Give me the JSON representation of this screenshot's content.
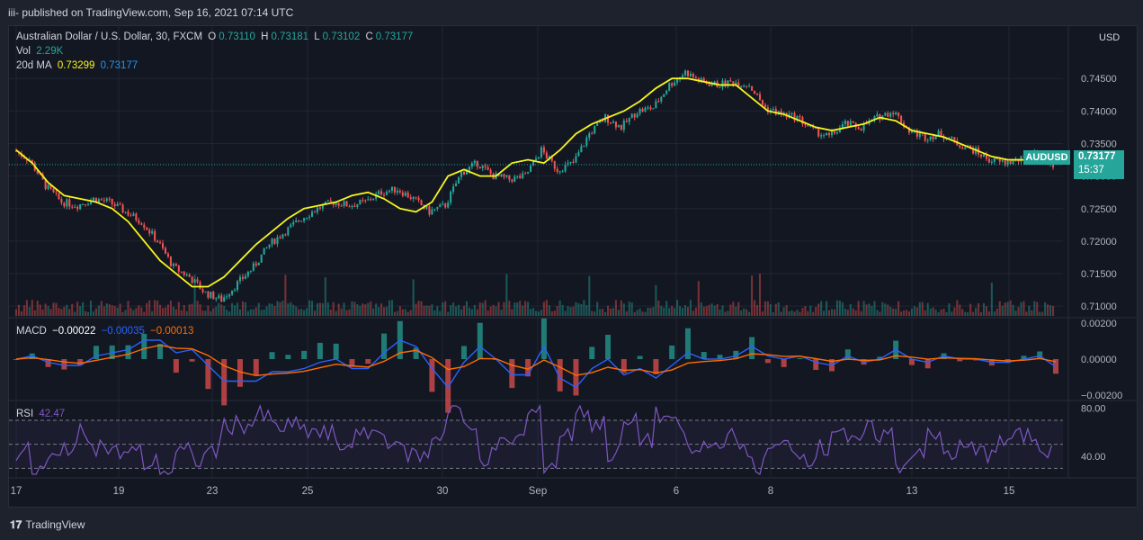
{
  "header": {
    "published": "iii- published on TradingView.com, Sep 16, 2021 07:14 UTC"
  },
  "legend": {
    "symbol": "Australian Dollar / U.S. Dollar, 30, FXCM",
    "o_label": "O",
    "o_value": "0.73110",
    "h_label": "H",
    "h_value": "0.73181",
    "l_label": "L",
    "l_value": "0.73102",
    "c_label": "C",
    "c_value": "0.73177",
    "vol_label": "Vol",
    "vol_value": "2.29K",
    "ma_label": "20d MA",
    "ma_value1": "0.73299",
    "ma_value2": "0.73177"
  },
  "macd_legend": {
    "label": "MACD",
    "v1": "−0.00022",
    "v2": "−0.00035",
    "v3": "−0.00013"
  },
  "rsi_legend": {
    "label": "RSI",
    "value": "42.47"
  },
  "price_tag": {
    "symbol": "AUDUSD",
    "last": "0.73177",
    "countdown": "15:37"
  },
  "footer": {
    "brand": "TradingView"
  },
  "colors": {
    "up": "#26a69a",
    "down": "#ef5350",
    "ma": "#f5f51d",
    "macd": "#2962ff",
    "signal": "#ff6d00",
    "rsi": "#7e57c2"
  },
  "chart_data": [
    {
      "type": "candlestick",
      "title": "Australian Dollar / U.S. Dollar, 30, FXCM",
      "currency": "USD",
      "x_ticks": [
        "17",
        "19",
        "23",
        "25",
        "30",
        "Sep",
        "6",
        "8",
        "13",
        "15"
      ],
      "y_ticks": [
        "0.74500",
        "0.74000",
        "0.73500",
        "0.73000",
        "0.72500",
        "0.72000",
        "0.71500",
        "0.71000"
      ],
      "ylim": [
        0.7085,
        0.7525
      ],
      "close_approx": [
        0.734,
        0.7325,
        0.7285,
        0.726,
        0.7255,
        0.7265,
        0.726,
        0.7245,
        0.723,
        0.72,
        0.716,
        0.7145,
        0.712,
        0.711,
        0.7135,
        0.716,
        0.7195,
        0.7215,
        0.7235,
        0.725,
        0.726,
        0.7255,
        0.726,
        0.7275,
        0.728,
        0.7265,
        0.7245,
        0.7255,
        0.7305,
        0.732,
        0.73,
        0.7295,
        0.73,
        0.734,
        0.731,
        0.732,
        0.7365,
        0.739,
        0.7375,
        0.74,
        0.7405,
        0.744,
        0.746,
        0.7445,
        0.744,
        0.7445,
        0.744,
        0.7405,
        0.7395,
        0.739,
        0.737,
        0.736,
        0.738,
        0.7375,
        0.739,
        0.74,
        0.737,
        0.736,
        0.7365,
        0.735,
        0.734,
        0.7325,
        0.732,
        0.7325,
        0.7335,
        0.7318
      ]
    },
    {
      "type": "line",
      "name": "20d MA",
      "color": "#f5f51d",
      "ma_approx": [
        0.734,
        0.732,
        0.729,
        0.727,
        0.7265,
        0.726,
        0.725,
        0.723,
        0.72,
        0.717,
        0.715,
        0.713,
        0.713,
        0.7145,
        0.717,
        0.7195,
        0.7215,
        0.7235,
        0.725,
        0.7255,
        0.726,
        0.727,
        0.7275,
        0.7265,
        0.725,
        0.7245,
        0.726,
        0.73,
        0.731,
        0.73,
        0.73,
        0.732,
        0.7325,
        0.732,
        0.734,
        0.7365,
        0.738,
        0.739,
        0.74,
        0.7415,
        0.7435,
        0.745,
        0.745,
        0.7445,
        0.744,
        0.744,
        0.742,
        0.74,
        0.7395,
        0.7385,
        0.7375,
        0.737,
        0.7375,
        0.738,
        0.739,
        0.7385,
        0.737,
        0.7365,
        0.736,
        0.735,
        0.734,
        0.733,
        0.7325,
        0.7325,
        0.733,
        0.733
      ]
    },
    {
      "type": "line",
      "name": "MACD",
      "y_ticks": [
        "0.00200",
        "0.00000",
        "−0.00200"
      ],
      "ylim": [
        -0.0022,
        0.0022
      ]
    },
    {
      "type": "line",
      "name": "RSI",
      "y_ticks": [
        "80.00",
        "40.00"
      ],
      "ylim": [
        25,
        85
      ],
      "bands": [
        70,
        50,
        30
      ]
    }
  ]
}
